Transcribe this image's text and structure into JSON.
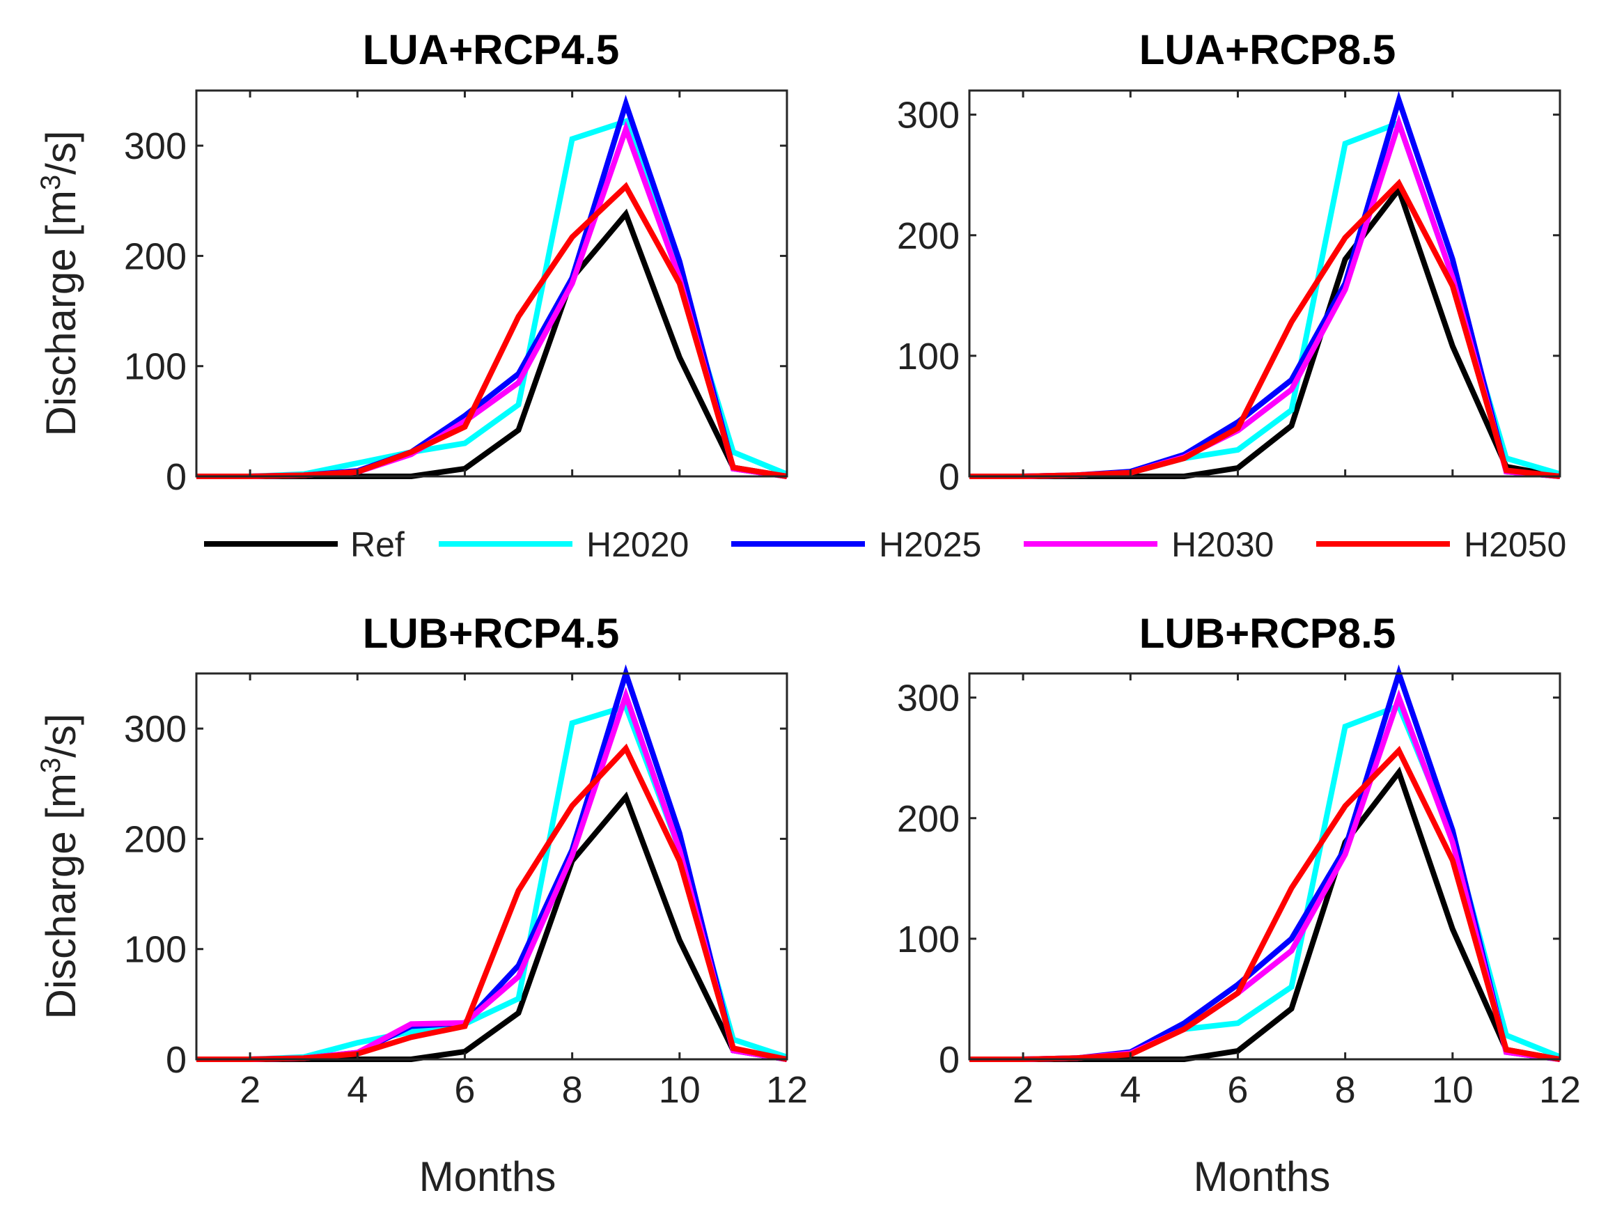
{
  "chart_data": [
    {
      "type": "line",
      "title": "LUA+RCP4.5",
      "ylabel": "Discharge [m3/s]",
      "ylabel_parts": {
        "pre": "Discharge [m",
        "sup": "3",
        "post": "/s]"
      },
      "xlabel": "",
      "xlim": [
        1,
        12
      ],
      "ylim": [
        0,
        350
      ],
      "xticks": [
        2,
        4,
        6,
        8,
        10,
        12
      ],
      "yticks": [
        0,
        100,
        200,
        300
      ],
      "x": [
        1,
        2,
        3,
        4,
        5,
        6,
        7,
        8,
        9,
        10,
        11,
        12
      ],
      "series": [
        {
          "name": "Ref",
          "values": [
            0,
            0,
            0,
            0,
            0,
            7,
            42,
            180,
            238,
            108,
            8,
            0
          ]
        },
        {
          "name": "H2020",
          "values": [
            0,
            0,
            2,
            12,
            22,
            30,
            65,
            306,
            322,
            180,
            22,
            2
          ]
        },
        {
          "name": "H2025",
          "values": [
            0,
            0,
            1,
            5,
            22,
            55,
            93,
            180,
            338,
            195,
            7,
            0
          ]
        },
        {
          "name": "H2030",
          "values": [
            0,
            0,
            1,
            4,
            20,
            50,
            85,
            175,
            315,
            180,
            7,
            0
          ]
        },
        {
          "name": "H2050",
          "values": [
            0,
            0,
            1,
            4,
            22,
            45,
            145,
            217,
            263,
            175,
            8,
            0
          ]
        }
      ]
    },
    {
      "type": "line",
      "title": "LUA+RCP8.5",
      "ylabel": "",
      "xlabel": "",
      "xlim": [
        1,
        12
      ],
      "ylim": [
        0,
        320
      ],
      "xticks": [
        2,
        4,
        6,
        8,
        10,
        12
      ],
      "yticks": [
        0,
        100,
        200,
        300
      ],
      "x": [
        1,
        2,
        3,
        4,
        5,
        6,
        7,
        8,
        9,
        10,
        11,
        12
      ],
      "series": [
        {
          "name": "Ref",
          "values": [
            0,
            0,
            0,
            0,
            0,
            7,
            42,
            180,
            238,
            108,
            8,
            0
          ]
        },
        {
          "name": "H2020",
          "values": [
            0,
            0,
            1,
            3,
            15,
            22,
            55,
            276,
            293,
            165,
            15,
            2
          ]
        },
        {
          "name": "H2025",
          "values": [
            0,
            0,
            1,
            4,
            18,
            45,
            80,
            160,
            312,
            180,
            4,
            0
          ]
        },
        {
          "name": "H2030",
          "values": [
            0,
            0,
            1,
            3,
            16,
            38,
            72,
            155,
            293,
            165,
            4,
            0
          ]
        },
        {
          "name": "H2050",
          "values": [
            0,
            0,
            1,
            3,
            15,
            40,
            128,
            198,
            243,
            158,
            5,
            0
          ]
        }
      ]
    },
    {
      "type": "line",
      "title": "LUB+RCP4.5",
      "ylabel": "Discharge [m3/s]",
      "ylabel_parts": {
        "pre": "Discharge [m",
        "sup": "3",
        "post": "/s]"
      },
      "xlabel": "Months",
      "xlim": [
        1,
        12
      ],
      "ylim": [
        0,
        350
      ],
      "xticks": [
        2,
        4,
        6,
        8,
        10,
        12
      ],
      "yticks": [
        0,
        100,
        200,
        300
      ],
      "x": [
        1,
        2,
        3,
        4,
        5,
        6,
        7,
        8,
        9,
        10,
        11,
        12
      ],
      "series": [
        {
          "name": "Ref",
          "values": [
            0,
            0,
            0,
            0,
            0,
            7,
            42,
            180,
            238,
            108,
            8,
            0
          ]
        },
        {
          "name": "H2020",
          "values": [
            0,
            0,
            2,
            15,
            25,
            32,
            55,
            305,
            320,
            190,
            18,
            2
          ]
        },
        {
          "name": "H2025",
          "values": [
            0,
            0,
            1,
            6,
            30,
            33,
            85,
            190,
            350,
            205,
            8,
            0
          ]
        },
        {
          "name": "H2030",
          "values": [
            0,
            0,
            1,
            6,
            32,
            33,
            75,
            185,
            330,
            190,
            8,
            0
          ]
        },
        {
          "name": "H2050",
          "values": [
            0,
            0,
            1,
            5,
            20,
            30,
            153,
            230,
            282,
            180,
            10,
            0
          ]
        }
      ]
    },
    {
      "type": "line",
      "title": "LUB+RCP8.5",
      "ylabel": "",
      "xlabel": "Months",
      "xlim": [
        1,
        12
      ],
      "ylim": [
        0,
        320
      ],
      "xticks": [
        2,
        4,
        6,
        8,
        10,
        12
      ],
      "yticks": [
        0,
        100,
        200,
        300
      ],
      "x": [
        1,
        2,
        3,
        4,
        5,
        6,
        7,
        8,
        9,
        10,
        11,
        12
      ],
      "series": [
        {
          "name": "Ref",
          "values": [
            0,
            0,
            0,
            0,
            0,
            7,
            42,
            180,
            238,
            108,
            8,
            0
          ]
        },
        {
          "name": "H2020",
          "values": [
            0,
            0,
            1,
            5,
            25,
            30,
            60,
            276,
            293,
            185,
            20,
            2
          ]
        },
        {
          "name": "H2025",
          "values": [
            0,
            0,
            1,
            6,
            30,
            62,
            100,
            175,
            320,
            190,
            6,
            0
          ]
        },
        {
          "name": "H2030",
          "values": [
            0,
            0,
            1,
            5,
            25,
            55,
            90,
            170,
            300,
            180,
            6,
            0
          ]
        },
        {
          "name": "H2050",
          "values": [
            0,
            0,
            1,
            4,
            25,
            55,
            142,
            210,
            256,
            165,
            8,
            0
          ]
        }
      ]
    }
  ],
  "legend": [
    {
      "name": "Ref",
      "color": "#000000"
    },
    {
      "name": "H2020",
      "color": "#00ffff"
    },
    {
      "name": "H2025",
      "color": "#0000ff"
    },
    {
      "name": "H2030",
      "color": "#ff00ff"
    },
    {
      "name": "H2050",
      "color": "#ff0000"
    }
  ]
}
